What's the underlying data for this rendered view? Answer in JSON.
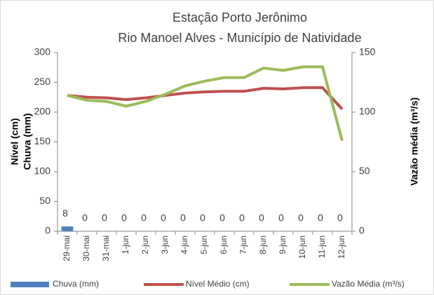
{
  "chart_data": {
    "type": "combo",
    "title": "Estação Porto Jerônimo",
    "subtitle": "Rio Manoel Alves - Município de Natividade",
    "ylabel": [
      "Nível (cm)",
      "Chuva (mm)"
    ],
    "y2label": "Vazão média (m³/s)",
    "categories": [
      "29-mai",
      "30-mai",
      "31-mai",
      "1-jun",
      "2-jun",
      "3-jun",
      "4-jun",
      "5-jun",
      "6-jun",
      "7-jun",
      "8-jun",
      "9-jun",
      "10-jun",
      "11-jun",
      "12-jun"
    ],
    "ylim": [
      0,
      300
    ],
    "yticks": [
      0,
      50,
      100,
      150,
      200,
      250,
      300
    ],
    "y2lim": [
      0,
      150
    ],
    "y2ticks": [
      0,
      50,
      100,
      150
    ],
    "grid": false,
    "legend": "bottom",
    "series": [
      {
        "name": "Chuva (mm)",
        "type": "bar",
        "color": "#4f81bd",
        "values": [
          8,
          0,
          0,
          0,
          0,
          0,
          0,
          0,
          0,
          0,
          0,
          0,
          0,
          0,
          0
        ]
      },
      {
        "name": "Nível Médio (cm)",
        "type": "line",
        "color": "#c0504d",
        "values": [
          228,
          225,
          224,
          221,
          224,
          228,
          232,
          234,
          235,
          235,
          240,
          239,
          241,
          241,
          205
        ]
      },
      {
        "name": "Vazão Média (m³/s)",
        "type": "line",
        "axis": "y2",
        "color": "#9bbb59",
        "values": [
          114,
          110,
          109,
          105,
          109,
          115,
          122,
          126,
          129,
          129,
          137,
          135,
          138,
          138,
          76
        ]
      }
    ]
  }
}
